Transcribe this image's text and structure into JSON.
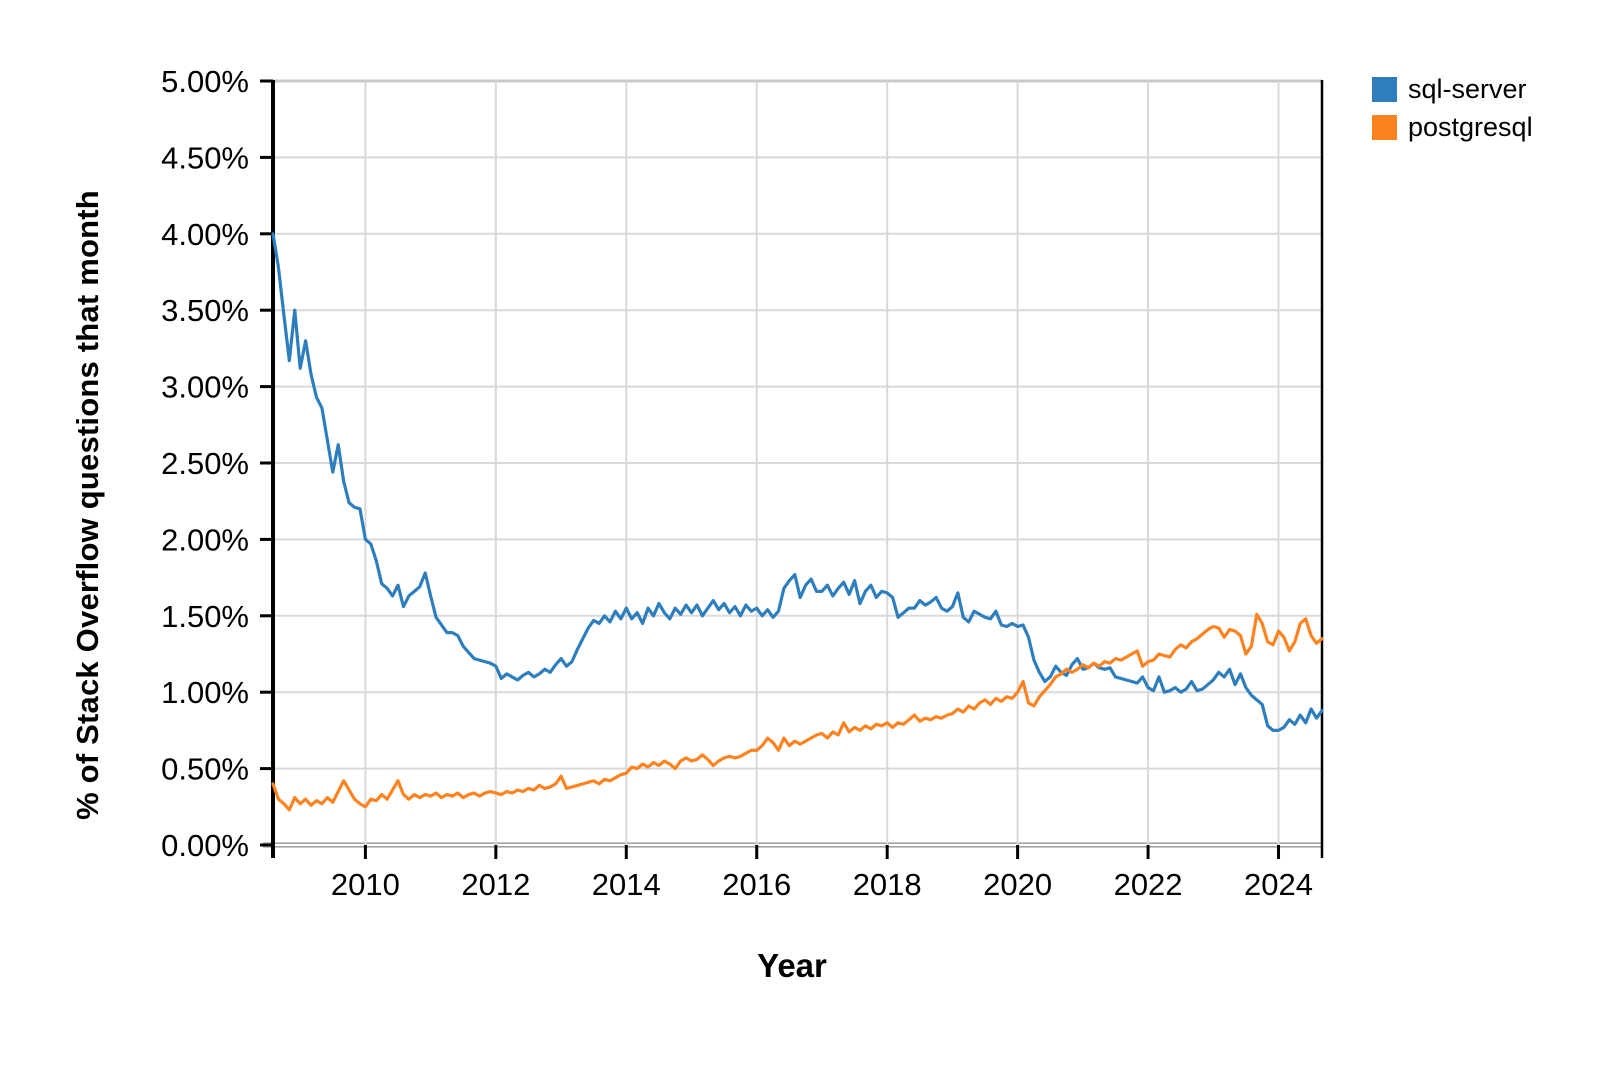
{
  "page": {
    "background": "#ffffff"
  },
  "chart_data": {
    "type": "line",
    "title": "",
    "xlabel": "Year",
    "ylabel": "% of Stack Overflow questions that month",
    "x_start": "2008-08",
    "x_end": "2024-09",
    "months_per_point": 1,
    "x_domain_years": [
      2008.5833,
      2024.6667
    ],
    "x_ticks": [
      2010,
      2012,
      2014,
      2016,
      2018,
      2020,
      2022,
      2024
    ],
    "ylim": [
      0,
      5
    ],
    "y_ticks": [
      0,
      0.5,
      1,
      1.5,
      2,
      2.5,
      3,
      3.5,
      4,
      4.5,
      5
    ],
    "y_tick_labels": [
      "0.00%",
      "0.50%",
      "1.00%",
      "1.50%",
      "2.00%",
      "2.50%",
      "3.00%",
      "3.50%",
      "4.00%",
      "4.50%",
      "5.00%"
    ],
    "grid": true,
    "legend_position": "outside-top-right",
    "colors": {
      "grid": "#d9d9d9",
      "axis": "#000000",
      "bottom_line": "#a3a3a3",
      "top_line": "#c9c9c9"
    },
    "series": [
      {
        "name": "sql-server",
        "color": "#2e7ebd",
        "values": [
          4.0,
          3.78,
          3.47,
          3.17,
          3.5,
          3.12,
          3.3,
          3.08,
          2.93,
          2.86,
          2.65,
          2.44,
          2.62,
          2.38,
          2.24,
          2.21,
          2.2,
          2.0,
          1.97,
          1.86,
          1.71,
          1.68,
          1.63,
          1.7,
          1.56,
          1.63,
          1.66,
          1.69,
          1.78,
          1.63,
          1.49,
          1.44,
          1.39,
          1.39,
          1.37,
          1.3,
          1.26,
          1.22,
          1.21,
          1.2,
          1.19,
          1.17,
          1.09,
          1.12,
          1.1,
          1.08,
          1.11,
          1.13,
          1.1,
          1.12,
          1.15,
          1.13,
          1.18,
          1.22,
          1.17,
          1.2,
          1.28,
          1.35,
          1.42,
          1.47,
          1.45,
          1.5,
          1.46,
          1.53,
          1.48,
          1.55,
          1.48,
          1.52,
          1.45,
          1.55,
          1.5,
          1.58,
          1.52,
          1.48,
          1.55,
          1.51,
          1.57,
          1.52,
          1.57,
          1.5,
          1.55,
          1.6,
          1.54,
          1.58,
          1.52,
          1.56,
          1.5,
          1.57,
          1.53,
          1.55,
          1.5,
          1.54,
          1.49,
          1.53,
          1.68,
          1.73,
          1.77,
          1.62,
          1.7,
          1.74,
          1.66,
          1.66,
          1.7,
          1.63,
          1.68,
          1.72,
          1.64,
          1.73,
          1.58,
          1.66,
          1.7,
          1.62,
          1.66,
          1.65,
          1.62,
          1.49,
          1.52,
          1.55,
          1.55,
          1.6,
          1.57,
          1.59,
          1.62,
          1.55,
          1.53,
          1.56,
          1.65,
          1.49,
          1.46,
          1.53,
          1.51,
          1.49,
          1.48,
          1.53,
          1.44,
          1.43,
          1.45,
          1.43,
          1.44,
          1.36,
          1.21,
          1.13,
          1.07,
          1.1,
          1.17,
          1.13,
          1.11,
          1.18,
          1.22,
          1.15,
          1.16,
          1.19,
          1.16,
          1.15,
          1.16,
          1.1,
          1.09,
          1.08,
          1.07,
          1.06,
          1.1,
          1.03,
          1.01,
          1.1,
          1.0,
          1.01,
          1.03,
          1.0,
          1.02,
          1.07,
          1.01,
          1.02,
          1.05,
          1.08,
          1.13,
          1.1,
          1.15,
          1.05,
          1.12,
          1.03,
          0.98,
          0.95,
          0.92,
          0.78,
          0.75,
          0.75,
          0.77,
          0.82,
          0.79,
          0.85,
          0.8,
          0.89,
          0.83,
          0.88
        ]
      },
      {
        "name": "postgresql",
        "color": "#fd8320",
        "values": [
          0.4,
          0.3,
          0.27,
          0.23,
          0.31,
          0.27,
          0.3,
          0.26,
          0.29,
          0.27,
          0.31,
          0.28,
          0.35,
          0.42,
          0.36,
          0.3,
          0.27,
          0.25,
          0.3,
          0.29,
          0.33,
          0.3,
          0.36,
          0.42,
          0.33,
          0.3,
          0.33,
          0.31,
          0.33,
          0.32,
          0.34,
          0.31,
          0.33,
          0.32,
          0.34,
          0.31,
          0.33,
          0.34,
          0.32,
          0.34,
          0.35,
          0.34,
          0.33,
          0.35,
          0.34,
          0.36,
          0.35,
          0.37,
          0.36,
          0.39,
          0.37,
          0.38,
          0.4,
          0.45,
          0.37,
          0.38,
          0.39,
          0.4,
          0.41,
          0.42,
          0.4,
          0.43,
          0.42,
          0.44,
          0.46,
          0.47,
          0.51,
          0.5,
          0.53,
          0.51,
          0.54,
          0.52,
          0.55,
          0.53,
          0.5,
          0.55,
          0.57,
          0.55,
          0.56,
          0.59,
          0.56,
          0.52,
          0.55,
          0.57,
          0.58,
          0.57,
          0.58,
          0.6,
          0.62,
          0.62,
          0.65,
          0.7,
          0.67,
          0.62,
          0.7,
          0.65,
          0.68,
          0.66,
          0.68,
          0.7,
          0.72,
          0.73,
          0.7,
          0.74,
          0.72,
          0.8,
          0.74,
          0.77,
          0.75,
          0.78,
          0.76,
          0.79,
          0.78,
          0.8,
          0.77,
          0.8,
          0.79,
          0.82,
          0.85,
          0.81,
          0.83,
          0.82,
          0.84,
          0.83,
          0.85,
          0.86,
          0.89,
          0.87,
          0.91,
          0.89,
          0.93,
          0.95,
          0.92,
          0.96,
          0.94,
          0.97,
          0.96,
          1.0,
          1.07,
          0.93,
          0.91,
          0.97,
          1.01,
          1.05,
          1.1,
          1.12,
          1.15,
          1.13,
          1.15,
          1.18,
          1.16,
          1.19,
          1.17,
          1.2,
          1.19,
          1.22,
          1.21,
          1.23,
          1.25,
          1.27,
          1.17,
          1.2,
          1.21,
          1.25,
          1.24,
          1.23,
          1.28,
          1.31,
          1.29,
          1.33,
          1.35,
          1.38,
          1.41,
          1.43,
          1.42,
          1.36,
          1.41,
          1.4,
          1.37,
          1.25,
          1.3,
          1.51,
          1.45,
          1.33,
          1.31,
          1.4,
          1.36,
          1.27,
          1.33,
          1.45,
          1.48,
          1.37,
          1.32,
          1.35
        ]
      }
    ]
  }
}
